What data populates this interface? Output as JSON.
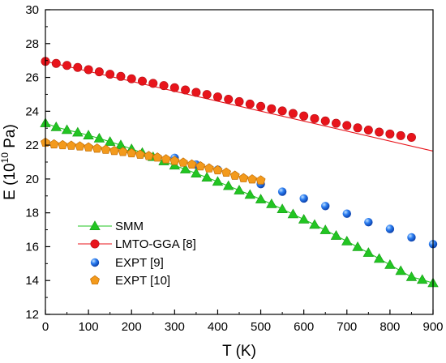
{
  "chart_data": {
    "type": "scatter",
    "xlabel": "T (K)",
    "ylabel": {
      "base": "E (10",
      "exp": "10",
      "unit": " Pa)"
    },
    "xlim": [
      0,
      900
    ],
    "ylim": [
      12,
      30
    ],
    "xticks": [
      0,
      100,
      200,
      300,
      400,
      500,
      600,
      700,
      800,
      900
    ],
    "yticks": [
      12,
      14,
      16,
      18,
      20,
      22,
      24,
      26,
      28,
      30
    ],
    "grid": false,
    "legend_position": "bottom-left",
    "series": [
      {
        "name": "SMM",
        "color": "#22c522",
        "line_color": "#22c522",
        "marker": "triangle",
        "line": true,
        "x": [
          0,
          25,
          50,
          75,
          100,
          125,
          150,
          175,
          200,
          225,
          250,
          275,
          300,
          325,
          350,
          375,
          400,
          425,
          450,
          475,
          500,
          525,
          550,
          575,
          600,
          625,
          650,
          675,
          700,
          725,
          750,
          775,
          800,
          825,
          850,
          875,
          900
        ],
        "y": [
          23.3,
          23.07,
          22.9,
          22.75,
          22.58,
          22.4,
          22.2,
          22.0,
          21.77,
          21.55,
          21.3,
          21.05,
          20.8,
          20.57,
          20.33,
          20.09,
          19.84,
          19.59,
          19.33,
          19.07,
          18.8,
          18.52,
          18.22,
          17.92,
          17.61,
          17.3,
          16.98,
          16.65,
          16.32,
          15.98,
          15.64,
          15.29,
          14.93,
          14.57,
          14.21,
          14.05,
          13.85
        ]
      },
      {
        "name": "LMTO-GGA [8]",
        "color": "#e8141b",
        "line_color": "#e8141b",
        "marker": "circle",
        "line": true,
        "x": [
          0,
          25,
          50,
          75,
          100,
          125,
          150,
          175,
          200,
          225,
          250,
          275,
          300,
          325,
          350,
          375,
          400,
          425,
          450,
          475,
          500,
          525,
          550,
          575,
          600,
          625,
          650,
          675,
          700,
          725,
          750,
          775,
          800,
          825,
          850
        ],
        "y": [
          26.95,
          26.83,
          26.71,
          26.59,
          26.46,
          26.33,
          26.19,
          26.06,
          25.92,
          25.78,
          25.65,
          25.52,
          25.39,
          25.26,
          25.12,
          24.99,
          24.85,
          24.71,
          24.57,
          24.43,
          24.29,
          24.15,
          24.02,
          23.87,
          23.72,
          23.57,
          23.43,
          23.29,
          23.16,
          23.02,
          22.89,
          22.77,
          22.66,
          22.56,
          22.46
        ],
        "line_x": [
          0,
          900
        ],
        "line_y": [
          26.95,
          21.65
        ]
      },
      {
        "name": "EXPT [9]",
        "color": "#1f5fd8",
        "marker": "sphere",
        "line": false,
        "x": [
          300,
          350,
          400,
          500,
          550,
          600,
          650,
          700,
          750,
          800,
          850,
          900
        ],
        "y": [
          21.25,
          20.85,
          20.55,
          19.7,
          19.25,
          18.85,
          18.4,
          17.95,
          17.45,
          17.05,
          16.55,
          16.15
        ]
      },
      {
        "name": "EXPT [10]",
        "color": "#f39a1c",
        "marker": "pentagon",
        "line": false,
        "x": [
          0,
          20,
          40,
          60,
          80,
          100,
          120,
          140,
          160,
          180,
          200,
          220,
          240,
          260,
          280,
          300,
          320,
          340,
          360,
          380,
          400,
          420,
          440,
          460,
          480,
          500
        ],
        "y": [
          22.15,
          22.05,
          22.0,
          21.97,
          21.93,
          21.87,
          21.8,
          21.73,
          21.66,
          21.6,
          21.52,
          21.44,
          21.36,
          21.27,
          21.17,
          21.07,
          20.97,
          20.86,
          20.75,
          20.63,
          20.52,
          20.38,
          20.2,
          20.05,
          19.98,
          19.92
        ]
      }
    ]
  }
}
